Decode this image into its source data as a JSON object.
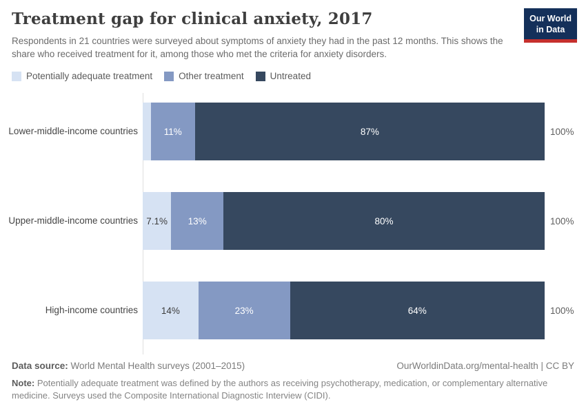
{
  "header": {
    "title": "Treatment gap for clinical anxiety, 2017",
    "subtitle": "Respondents in 21 countries were surveyed about symptoms of anxiety they had in the past 12 months. This shows the share who received treatment for it, among those who met the criteria for anxiety disorders."
  },
  "logo": {
    "line1": "Our World",
    "line2": "in Data",
    "bg_color": "#14305a",
    "accent_color": "#c5302d"
  },
  "chart_data": {
    "type": "bar",
    "stacked": true,
    "orientation": "horizontal",
    "xlim": [
      0,
      100
    ],
    "grid": false,
    "legend_position": "top-left",
    "categories": [
      "Lower-middle-income countries",
      "Upper-middle-income countries",
      "High-income countries"
    ],
    "series": [
      {
        "name": "Potentially adequate treatment",
        "color": "#d6e2f3",
        "label_color": "#3d3d3d",
        "values": [
          2,
          7.1,
          14
        ],
        "labels": [
          "",
          "7.1%",
          "14%"
        ]
      },
      {
        "name": "Other treatment",
        "color": "#8499c3",
        "label_color": "#ffffff",
        "values": [
          11,
          13,
          23
        ],
        "labels": [
          "11%",
          "13%",
          "23%"
        ]
      },
      {
        "name": "Untreated",
        "color": "#36485f",
        "label_color": "#ffffff",
        "values": [
          87,
          80,
          64
        ],
        "labels": [
          "87%",
          "80%",
          "64%"
        ]
      }
    ],
    "total_label": "100%"
  },
  "footer": {
    "data_source_label": "Data source:",
    "data_source_text": " World Mental Health surveys (2001–2015)",
    "attribution": "OurWorldinData.org/mental-health | CC BY",
    "note_label": "Note:",
    "note_text": " Potentially adequate treatment was defined by the authors as receiving psychotherapy, medication, or complementary alternative medicine. Surveys used the Composite International Diagnostic Interview (CIDI)."
  }
}
